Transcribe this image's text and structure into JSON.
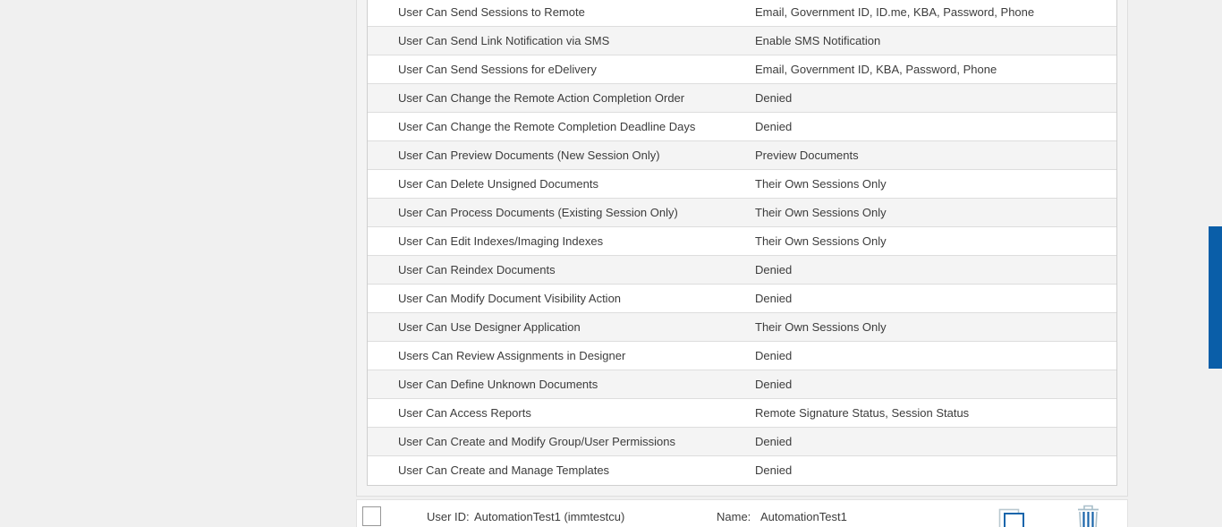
{
  "panel": {
    "rows": [
      {
        "label": "User Can Send Sessions to Remote",
        "value": "Email, Government ID, ID.me, KBA, Password, Phone"
      },
      {
        "label": "User Can Send Link Notification via SMS",
        "value": "Enable SMS Notification"
      },
      {
        "label": "User Can Send Sessions for eDelivery",
        "value": "Email, Government ID, KBA, Password, Phone"
      },
      {
        "label": "User Can Change the Remote Action Completion Order",
        "value": "Denied"
      },
      {
        "label": "User Can Change the Remote Completion Deadline Days",
        "value": "Denied"
      },
      {
        "label": "User Can Preview Documents (New Session Only)",
        "value": "Preview Documents"
      },
      {
        "label": "User Can Delete Unsigned Documents",
        "value": "Their Own Sessions Only"
      },
      {
        "label": "User Can Process Documents (Existing Session Only)",
        "value": "Their Own Sessions Only"
      },
      {
        "label": "User Can Edit Indexes/Imaging Indexes",
        "value": "Their Own Sessions Only"
      },
      {
        "label": "User Can Reindex Documents",
        "value": "Denied"
      },
      {
        "label": "User Can Modify Document Visibility Action",
        "value": "Denied"
      },
      {
        "label": "User Can Use Designer Application",
        "value": "Their Own Sessions Only"
      },
      {
        "label": "Users Can Review Assignments in Designer",
        "value": "Denied"
      },
      {
        "label": "User Can Define Unknown Documents",
        "value": "Denied"
      },
      {
        "label": "User Can Access Reports",
        "value": "Remote Signature Status, Session Status"
      },
      {
        "label": "User Can Create and Modify Group/User Permissions",
        "value": "Denied"
      },
      {
        "label": "User Can Create and Manage Templates",
        "value": "Denied"
      }
    ]
  },
  "footer": {
    "user_id_label": "User ID:",
    "user_id_value": "AutomationTest1 (immtestcu)",
    "name_label": "Name:",
    "name_value": "AutomationTest1",
    "checkbox_checked": false,
    "copy_icon": "copy-icon",
    "delete_icon": "trash-icon"
  },
  "colors": {
    "page_bg": "#f0f0f0",
    "panel_bg": "#f4f4f4",
    "row_bg": "#ffffff",
    "row_alt_bg": "#f4f4f4",
    "row_border": "#dddddd",
    "text": "#3c3c3c",
    "accent_blue": "#0a5ea8",
    "icon_gray_blue": "#b0c3cd"
  }
}
